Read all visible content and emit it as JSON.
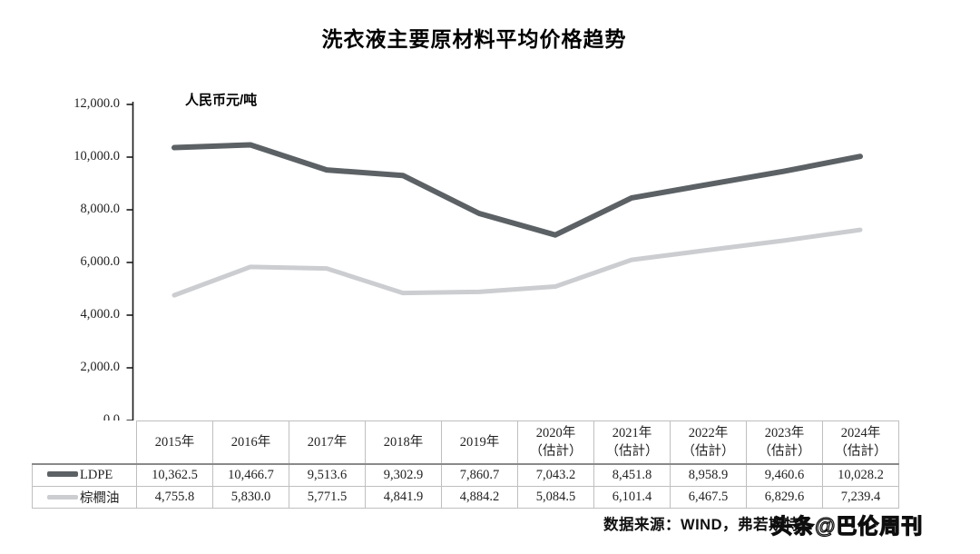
{
  "title": "洗衣液主要原材料平均价格趋势",
  "unit_label": "人民币元/吨",
  "source_text": "数据来源：WIND，弗若斯特",
  "watermark": "头条@巴伦周刊",
  "colors": {
    "ldpe_line": "#5c6165",
    "palm_line": "#cbcdd0",
    "axis": "#1a1a1a",
    "table_border": "#bfbfbf",
    "table_header_rule": "#8a8a8a"
  },
  "chart_data": {
    "type": "line",
    "title": "洗衣液主要原材料平均价格趋势",
    "ylabel": "人民币元/吨",
    "xlabel": "",
    "grid": false,
    "legend_position": "table-left",
    "ylim": [
      0,
      12000
    ],
    "ytick_step": 2000,
    "ytick_labels": [
      "0.0",
      "2,000.0",
      "4,000.0",
      "6,000.0",
      "8,000.0",
      "10,000.0",
      "12,000.0"
    ],
    "categories": [
      "2015年",
      "2016年",
      "2017年",
      "2018年",
      "2019年",
      "2020年（估計）",
      "2021年（估計）",
      "2022年（估計）",
      "2023年（估計）",
      "2024年（估計）"
    ],
    "series": [
      {
        "name": "LDPE",
        "color": "#5c6165",
        "values": [
          10362.5,
          10466.7,
          9513.6,
          9302.9,
          7860.7,
          7043.2,
          8451.8,
          8958.9,
          9460.6,
          10028.2
        ]
      },
      {
        "name": "棕櫚油",
        "color": "#cbcdd0",
        "values": [
          4755.8,
          5830.0,
          5771.5,
          4841.9,
          4884.2,
          5084.5,
          6101.4,
          6467.5,
          6829.6,
          7239.4
        ]
      }
    ]
  },
  "table": {
    "col_headers": [
      "2015年",
      "2016年",
      "2017年",
      "2018年",
      "2019年",
      "2020年\n（估計）",
      "2021年\n（估計）",
      "2022年\n（估計）",
      "2023年\n（估計）",
      "2024年\n（估計）"
    ],
    "rows": [
      {
        "label": "LDPE",
        "swatch_color": "#5c6165",
        "swatch_height": 6,
        "cells": [
          "10,362.5",
          "10,466.7",
          "9,513.6",
          "9,302.9",
          "7,860.7",
          "7,043.2",
          "8,451.8",
          "8,958.9",
          "9,460.6",
          "10,028.2"
        ]
      },
      {
        "label": "棕櫚油",
        "swatch_color": "#cbcdd0",
        "swatch_height": 5,
        "cells": [
          "4,755.8",
          "5,830.0",
          "5,771.5",
          "4,841.9",
          "4,884.2",
          "5,084.5",
          "6,101.4",
          "6,467.5",
          "6,829.6",
          "7,239.4"
        ]
      }
    ]
  }
}
